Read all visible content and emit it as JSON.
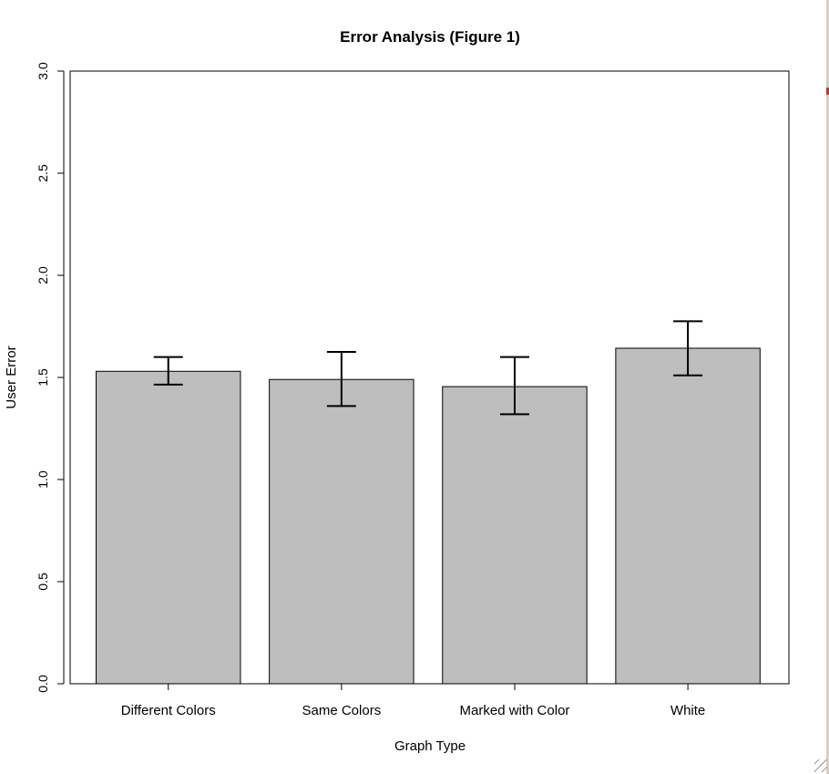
{
  "window": {
    "resize_grip_icon": "resize-grip-icon"
  },
  "chart_data": {
    "type": "bar",
    "title": "Error Analysis (Figure 1)",
    "xlabel": "Graph Type",
    "ylabel": "User Error",
    "categories": [
      "Different Colors",
      "Same Colors",
      "Marked with Color",
      "White"
    ],
    "values": [
      1.53,
      1.49,
      1.455,
      1.643
    ],
    "error_low": [
      1.465,
      1.36,
      1.32,
      1.51
    ],
    "error_high": [
      1.6,
      1.625,
      1.6,
      1.775
    ],
    "ylim": [
      0,
      3
    ],
    "yticks": [
      "0.0",
      "0.5",
      "1.0",
      "1.5",
      "2.0",
      "2.5",
      "3.0"
    ],
    "ytick_values": [
      0,
      0.5,
      1,
      1.5,
      2,
      2.5,
      3
    ],
    "grid": false,
    "legend": "none",
    "colors": {
      "bar": "#bebebe",
      "bar_edge": "#000000",
      "error_bar": "#000000",
      "axis": "#000000"
    }
  }
}
